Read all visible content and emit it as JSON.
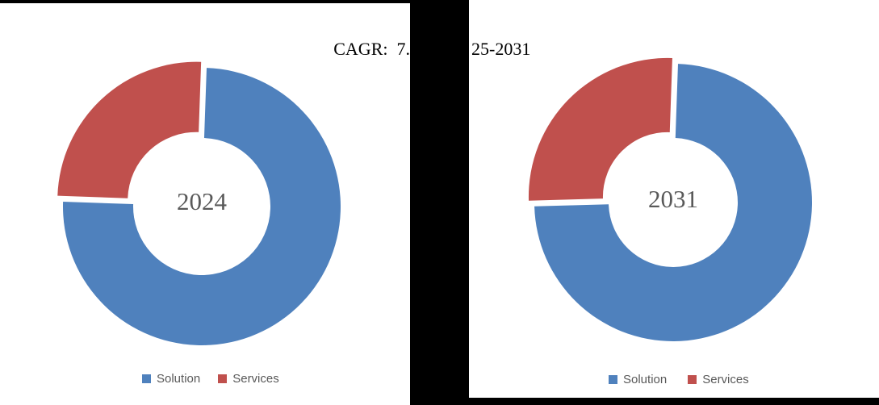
{
  "title": {
    "visible_left_fragment": "CAGR:  7.",
    "visible_right_fragment": "25-2031"
  },
  "charts": [
    {
      "center_label": "2024",
      "segments": [
        {
          "label": "Solution",
          "value": 75,
          "color": "#4F81BD",
          "exploded": false
        },
        {
          "label": "Services",
          "value": 25,
          "color": "#C0504D",
          "exploded": true
        }
      ],
      "legend": [
        {
          "label": "Solution",
          "color": "#4F81BD"
        },
        {
          "label": "Services",
          "color": "#C0504D"
        }
      ]
    },
    {
      "center_label": "2031",
      "segments": [
        {
          "label": "Solution",
          "value": 74,
          "color": "#4F81BD",
          "exploded": false
        },
        {
          "label": "Services",
          "value": 26,
          "color": "#C0504D",
          "exploded": true
        }
      ],
      "legend": [
        {
          "label": "Solution",
          "color": "#4F81BD"
        },
        {
          "label": "Services",
          "color": "#C0504D"
        }
      ]
    }
  ],
  "chart_data": [
    {
      "type": "pie",
      "subtype": "donut",
      "title": "2024",
      "categories": [
        "Solution",
        "Services"
      ],
      "values": [
        75,
        25
      ],
      "value_unit": "%",
      "values_estimated_from_angles": true,
      "center_text": "2024",
      "legend_entries": [
        "Solution",
        "Services"
      ],
      "legend_position": "bottom",
      "colors": [
        "#4F81BD",
        "#C0504D"
      ],
      "donut_hole_ratio": 0.49,
      "first_slice_angle_deg": 2,
      "exploded_slice": "Services"
    },
    {
      "type": "pie",
      "subtype": "donut",
      "title": "2031",
      "categories": [
        "Solution",
        "Services"
      ],
      "values": [
        74,
        26
      ],
      "value_unit": "%",
      "values_estimated_from_angles": true,
      "center_text": "2031",
      "legend_entries": [
        "Solution",
        "Services"
      ],
      "legend_position": "bottom",
      "colors": [
        "#4F81BD",
        "#C0504D"
      ],
      "donut_hole_ratio": 0.47,
      "first_slice_angle_deg": 2,
      "exploded_slice": "Services"
    }
  ],
  "style_colors": {
    "solution_blue": "#4F81BD",
    "services_red": "#C0504D",
    "legend_text": "#595959",
    "center_label_text": "#595959",
    "title_text": "#000000",
    "redaction_black": "#000000",
    "background": "#FFFFFF"
  }
}
